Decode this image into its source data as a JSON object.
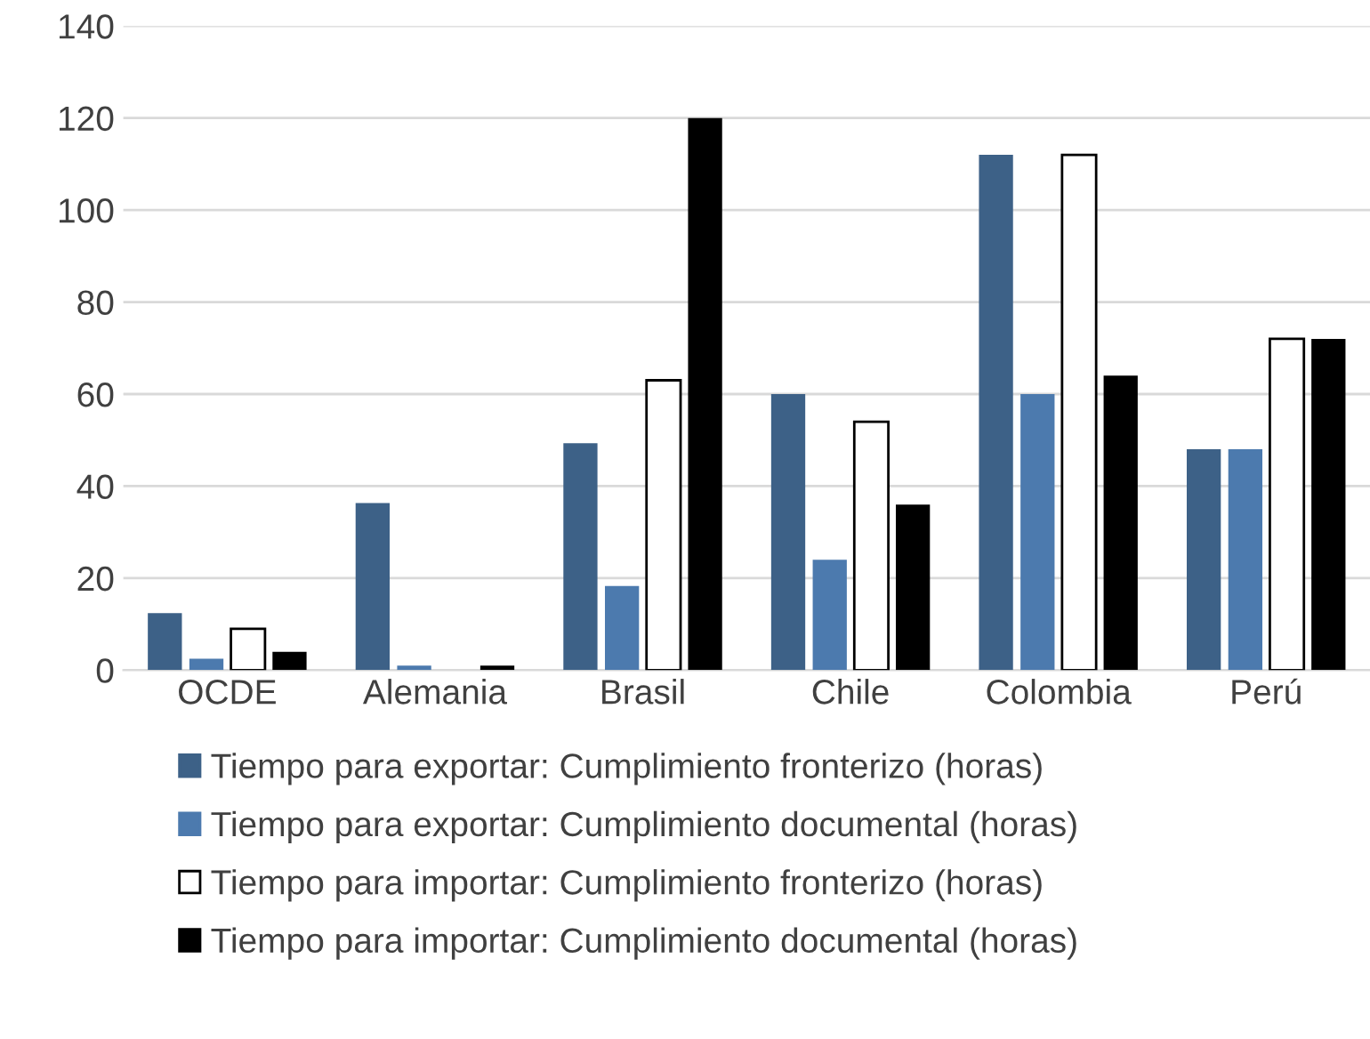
{
  "chart_data": {
    "type": "bar",
    "categories": [
      "OCDE",
      "Alemania",
      "Brasil",
      "Chile",
      "Colombia",
      "Perú"
    ],
    "series": [
      {
        "name": "Tiempo para exportar: Cumplimiento fronterizo (horas)",
        "color": "#3d6187",
        "values": [
          12.4,
          36.3,
          49.3,
          60,
          112,
          48
        ]
      },
      {
        "name": "Tiempo para exportar: Cumplimiento documental (horas)",
        "color": "#4c7aae",
        "values": [
          2.5,
          1,
          18.3,
          24,
          60,
          48
        ]
      },
      {
        "name": "Tiempo para importar: Cumplimiento fronterizo (horas)",
        "color": "#ffffff",
        "values": [
          9,
          null,
          63,
          54,
          112,
          72
        ]
      },
      {
        "name": "Tiempo para importar: Cumplimiento documental (horas)",
        "color": "#000000",
        "values": [
          4,
          1,
          120,
          36,
          64,
          72
        ]
      }
    ],
    "ylim": [
      0,
      140
    ],
    "yticks": [
      0,
      20,
      40,
      60,
      80,
      100,
      120,
      140
    ],
    "grid": "y",
    "legend": "bottom"
  }
}
